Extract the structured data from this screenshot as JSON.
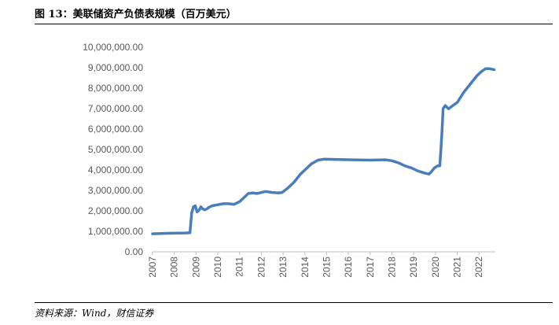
{
  "figure": {
    "title": "图 13：美联储资产负债表规模（百万美元）",
    "source": "资料来源：Wind，财信证券"
  },
  "chart_data": {
    "type": "line",
    "title": "",
    "xlabel": "",
    "ylabel": "",
    "ylim": [
      0,
      10000000
    ],
    "xlim": [
      2007,
      2022.75
    ],
    "grid": false,
    "legend": "none",
    "y_ticks": [
      "0.00",
      "1,000,000.00",
      "2,000,000.00",
      "3,000,000.00",
      "4,000,000.00",
      "5,000,000.00",
      "6,000,000.00",
      "7,000,000.00",
      "8,000,000.00",
      "9,000,000.00",
      "10,000,000.00"
    ],
    "x_ticks": [
      "2007",
      "2008",
      "2009",
      "2010",
      "2011",
      "2012",
      "2013",
      "2014",
      "2015",
      "2016",
      "2017",
      "2018",
      "2019",
      "2020",
      "2021",
      "2022"
    ],
    "line_color": "#4a7ebb",
    "series": [
      {
        "x": [
          2007.0,
          2007.5,
          2008.0,
          2008.5,
          2008.72,
          2008.8,
          2008.88,
          2008.96,
          2009.05,
          2009.15,
          2009.22,
          2009.3,
          2009.4,
          2009.5,
          2009.6,
          2009.75,
          2010.0,
          2010.25,
          2010.5,
          2010.75,
          2010.9,
          2011.0,
          2011.2,
          2011.4,
          2011.6,
          2011.8,
          2012.0,
          2012.2,
          2012.5,
          2012.8,
          2012.95,
          2013.2,
          2013.5,
          2013.8,
          2014.0,
          2014.3,
          2014.6,
          2014.9,
          2015.2,
          2016.0,
          2017.0,
          2017.7,
          2018.0,
          2018.3,
          2018.6,
          2018.9,
          2019.2,
          2019.5,
          2019.7,
          2019.8,
          2019.95,
          2020.1,
          2020.2,
          2020.25,
          2020.3,
          2020.35,
          2020.45,
          2020.6,
          2020.8,
          2021.0,
          2021.3,
          2021.6,
          2021.9,
          2022.1,
          2022.3,
          2022.5,
          2022.7
        ],
        "values": [
          880000,
          900000,
          910000,
          920000,
          930000,
          1900000,
          2200000,
          2250000,
          1950000,
          2050000,
          2200000,
          2100000,
          2050000,
          2100000,
          2180000,
          2250000,
          2300000,
          2350000,
          2350000,
          2320000,
          2400000,
          2450000,
          2650000,
          2850000,
          2880000,
          2850000,
          2900000,
          2950000,
          2900000,
          2880000,
          2900000,
          3100000,
          3400000,
          3800000,
          4000000,
          4300000,
          4480000,
          4530000,
          4520000,
          4500000,
          4480000,
          4500000,
          4450000,
          4350000,
          4200000,
          4100000,
          3950000,
          3850000,
          3800000,
          3900000,
          4100000,
          4200000,
          4200000,
          5000000,
          5900000,
          7000000,
          7150000,
          6990000,
          7150000,
          7300000,
          7800000,
          8200000,
          8600000,
          8800000,
          8950000,
          8950000,
          8900000
        ]
      }
    ]
  }
}
